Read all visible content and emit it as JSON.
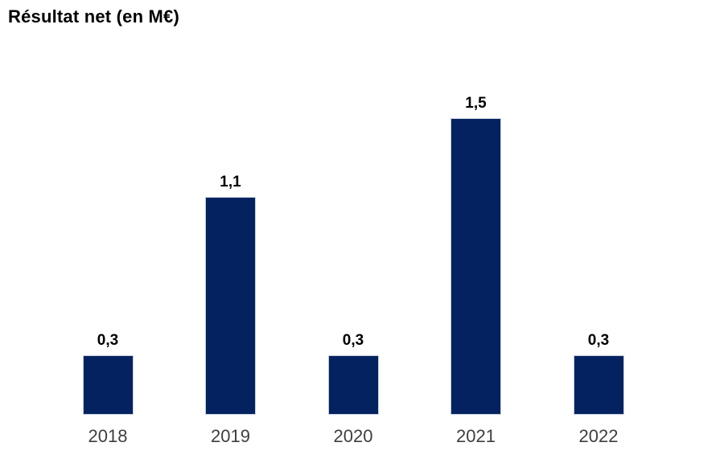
{
  "chart_data": {
    "type": "bar",
    "title": "Résultat net (en M€)",
    "categories": [
      "2018",
      "2019",
      "2020",
      "2021",
      "2022"
    ],
    "values": [
      0.3,
      1.1,
      0.3,
      1.5,
      0.3
    ],
    "value_labels": [
      "0,3",
      "1,1",
      "0,3",
      "1,5",
      "0,3"
    ],
    "xlabel": "",
    "ylabel": "",
    "ylim": [
      0,
      1.6
    ],
    "grid": false,
    "legend": "none",
    "axes_hidden": true,
    "bar_color": "#052260",
    "bar_border_color": "#c6cedd",
    "title_color": "#000000",
    "value_label_color": "#000000",
    "tick_label_color": "#3f3f3f",
    "background_color": "#ffffff"
  }
}
